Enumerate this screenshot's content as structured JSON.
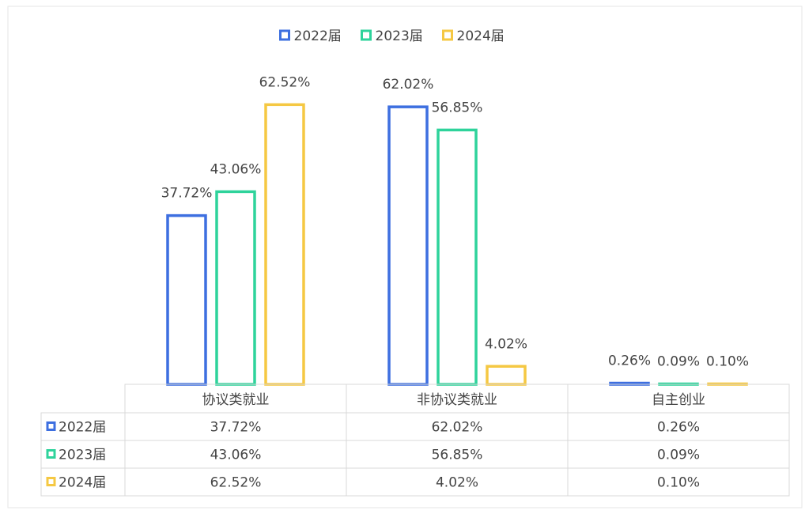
{
  "chart_data": {
    "type": "bar",
    "categories": [
      "协议类就业",
      "非协议类就业",
      "自主创业"
    ],
    "series": [
      {
        "name": "2022届",
        "color": "#3d6fe0",
        "values": [
          37.72,
          62.02,
          0.26
        ],
        "value_labels": [
          "37.72%",
          "62.02%",
          "0.26%"
        ]
      },
      {
        "name": "2023届",
        "color": "#2ed39b",
        "values": [
          43.06,
          56.85,
          0.09
        ],
        "value_labels": [
          "43.06%",
          "56.85%",
          "0.09%"
        ]
      },
      {
        "name": "2024届",
        "color": "#f5c843",
        "values": [
          62.52,
          4.02,
          0.1
        ],
        "value_labels": [
          "62.52%",
          "4.02%",
          "0.10%"
        ]
      }
    ],
    "ylim": [
      0,
      70
    ],
    "legend": "top"
  }
}
